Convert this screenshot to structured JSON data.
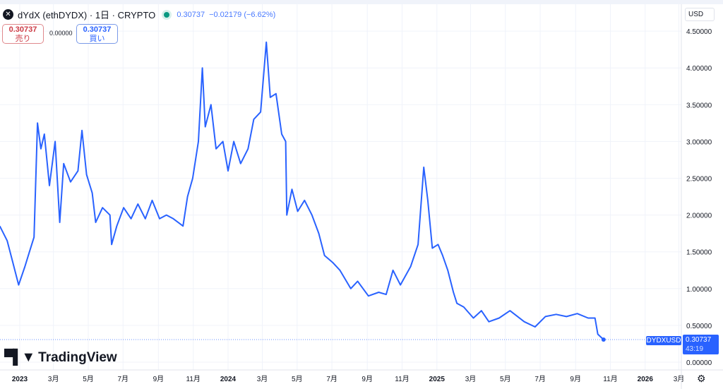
{
  "header": {
    "symbol": "dYdX (ethDYDX) · 1日 · CRYPTO",
    "logo_icon": "dydx-logo-icon",
    "market_status_color": "#089981",
    "last": "0.30737",
    "change": "−0.02179 (−6.62%)"
  },
  "trade": {
    "sell_price": "0.30737",
    "sell_label": "売り",
    "spread": "0.00000",
    "buy_price": "0.30737",
    "buy_label": "買い"
  },
  "currency": "USD",
  "branding": "TradingView",
  "price_tag": {
    "symbol": "DYDXUSD",
    "price": "0.30737",
    "countdown": "43:19"
  },
  "colors": {
    "line": "#2962ff",
    "sell": "#cc3a44",
    "buy": "#2962ff"
  },
  "chart_data": {
    "type": "line",
    "title": "",
    "xlabel": "",
    "ylabel": "",
    "ylim": [
      0,
      4.5
    ],
    "grid": true,
    "y_ticks": [
      "0.00000",
      "0.50000",
      "1.00000",
      "1.50000",
      "2.00000",
      "2.50000",
      "3.00000",
      "3.50000",
      "4.00000",
      "4.50000"
    ],
    "x_ticks": [
      {
        "date": "2023-01-01",
        "label": "2023",
        "bold": true
      },
      {
        "date": "2023-03-01",
        "label": "3月"
      },
      {
        "date": "2023-05-01",
        "label": "5月"
      },
      {
        "date": "2023-07-01",
        "label": "7月"
      },
      {
        "date": "2023-09-01",
        "label": "9月"
      },
      {
        "date": "2023-11-01",
        "label": "11月"
      },
      {
        "date": "2024-01-01",
        "label": "2024",
        "bold": true
      },
      {
        "date": "2024-03-01",
        "label": "3月"
      },
      {
        "date": "2024-05-01",
        "label": "5月"
      },
      {
        "date": "2024-07-01",
        "label": "7月"
      },
      {
        "date": "2024-09-01",
        "label": "9月"
      },
      {
        "date": "2024-11-01",
        "label": "11月"
      },
      {
        "date": "2025-01-01",
        "label": "2025",
        "bold": true
      },
      {
        "date": "2025-03-01",
        "label": "3月"
      },
      {
        "date": "2025-05-01",
        "label": "5月"
      },
      {
        "date": "2025-07-01",
        "label": "7月"
      },
      {
        "date": "2025-09-01",
        "label": "9月"
      },
      {
        "date": "2025-11-01",
        "label": "11月"
      },
      {
        "date": "2026-01-01",
        "label": "2026",
        "bold": true
      },
      {
        "date": "2026-03-01",
        "label": "3月"
      }
    ],
    "x_range": [
      "2022-11-27",
      "2026-04-10"
    ],
    "series": [
      {
        "points": [
          [
            "2022-11-27",
            1.85
          ],
          [
            "2022-12-10",
            1.65
          ],
          [
            "2022-12-20",
            1.35
          ],
          [
            "2022-12-30",
            1.05
          ],
          [
            "2023-01-10",
            1.3
          ],
          [
            "2023-01-18",
            1.5
          ],
          [
            "2023-01-26",
            1.7
          ],
          [
            "2023-02-01",
            3.25
          ],
          [
            "2023-02-07",
            2.9
          ],
          [
            "2023-02-13",
            3.1
          ],
          [
            "2023-02-22",
            2.4
          ],
          [
            "2023-03-04",
            3.0
          ],
          [
            "2023-03-12",
            1.9
          ],
          [
            "2023-03-19",
            2.7
          ],
          [
            "2023-03-31",
            2.45
          ],
          [
            "2023-04-13",
            2.6
          ],
          [
            "2023-04-20",
            3.15
          ],
          [
            "2023-04-28",
            2.55
          ],
          [
            "2023-05-08",
            2.3
          ],
          [
            "2023-05-14",
            1.9
          ],
          [
            "2023-05-26",
            2.1
          ],
          [
            "2023-06-08",
            2.0
          ],
          [
            "2023-06-11",
            1.6
          ],
          [
            "2023-06-20",
            1.85
          ],
          [
            "2023-07-02",
            2.1
          ],
          [
            "2023-07-15",
            1.95
          ],
          [
            "2023-07-27",
            2.15
          ],
          [
            "2023-08-09",
            1.95
          ],
          [
            "2023-08-21",
            2.2
          ],
          [
            "2023-09-03",
            1.95
          ],
          [
            "2023-09-15",
            2.0
          ],
          [
            "2023-09-27",
            1.95
          ],
          [
            "2023-10-14",
            1.85
          ],
          [
            "2023-10-22",
            2.25
          ],
          [
            "2023-10-31",
            2.5
          ],
          [
            "2023-11-10",
            3.0
          ],
          [
            "2023-11-17",
            4.0
          ],
          [
            "2023-11-22",
            3.2
          ],
          [
            "2023-12-02",
            3.5
          ],
          [
            "2023-12-11",
            2.9
          ],
          [
            "2023-12-23",
            3.0
          ],
          [
            "2024-01-01",
            2.6
          ],
          [
            "2024-01-11",
            3.0
          ],
          [
            "2024-01-23",
            2.7
          ],
          [
            "2024-02-05",
            2.9
          ],
          [
            "2024-02-15",
            3.3
          ],
          [
            "2024-02-27",
            3.4
          ],
          [
            "2024-03-08",
            4.35
          ],
          [
            "2024-03-15",
            3.6
          ],
          [
            "2024-03-25",
            3.65
          ],
          [
            "2024-04-04",
            3.1
          ],
          [
            "2024-04-11",
            3.0
          ],
          [
            "2024-04-13",
            2.0
          ],
          [
            "2024-04-22",
            2.35
          ],
          [
            "2024-05-02",
            2.05
          ],
          [
            "2024-05-14",
            2.2
          ],
          [
            "2024-05-27",
            2.0
          ],
          [
            "2024-06-08",
            1.75
          ],
          [
            "2024-06-18",
            1.45
          ],
          [
            "2024-07-03",
            1.35
          ],
          [
            "2024-07-15",
            1.25
          ],
          [
            "2024-08-03",
            1.0
          ],
          [
            "2024-08-15",
            1.1
          ],
          [
            "2024-09-03",
            0.9
          ],
          [
            "2024-09-21",
            0.95
          ],
          [
            "2024-10-04",
            0.92
          ],
          [
            "2024-10-16",
            1.25
          ],
          [
            "2024-10-29",
            1.05
          ],
          [
            "2024-11-16",
            1.3
          ],
          [
            "2024-11-29",
            1.6
          ],
          [
            "2024-12-09",
            2.65
          ],
          [
            "2024-12-16",
            2.2
          ],
          [
            "2024-12-24",
            1.55
          ],
          [
            "2025-01-03",
            1.6
          ],
          [
            "2025-01-11",
            1.45
          ],
          [
            "2025-01-20",
            1.25
          ],
          [
            "2025-01-30",
            0.95
          ],
          [
            "2025-02-05",
            0.8
          ],
          [
            "2025-02-17",
            0.75
          ],
          [
            "2025-03-06",
            0.6
          ],
          [
            "2025-03-20",
            0.7
          ],
          [
            "2025-04-02",
            0.55
          ],
          [
            "2025-04-20",
            0.6
          ],
          [
            "2025-05-09",
            0.7
          ],
          [
            "2025-06-03",
            0.55
          ],
          [
            "2025-06-22",
            0.48
          ],
          [
            "2025-07-10",
            0.62
          ],
          [
            "2025-07-29",
            0.65
          ],
          [
            "2025-08-16",
            0.62
          ],
          [
            "2025-09-04",
            0.66
          ],
          [
            "2025-09-23",
            0.6
          ],
          [
            "2025-10-05",
            0.6
          ],
          [
            "2025-10-10",
            0.38
          ],
          [
            "2025-10-20",
            0.30737
          ]
        ]
      }
    ],
    "last_value": 0.30737
  }
}
